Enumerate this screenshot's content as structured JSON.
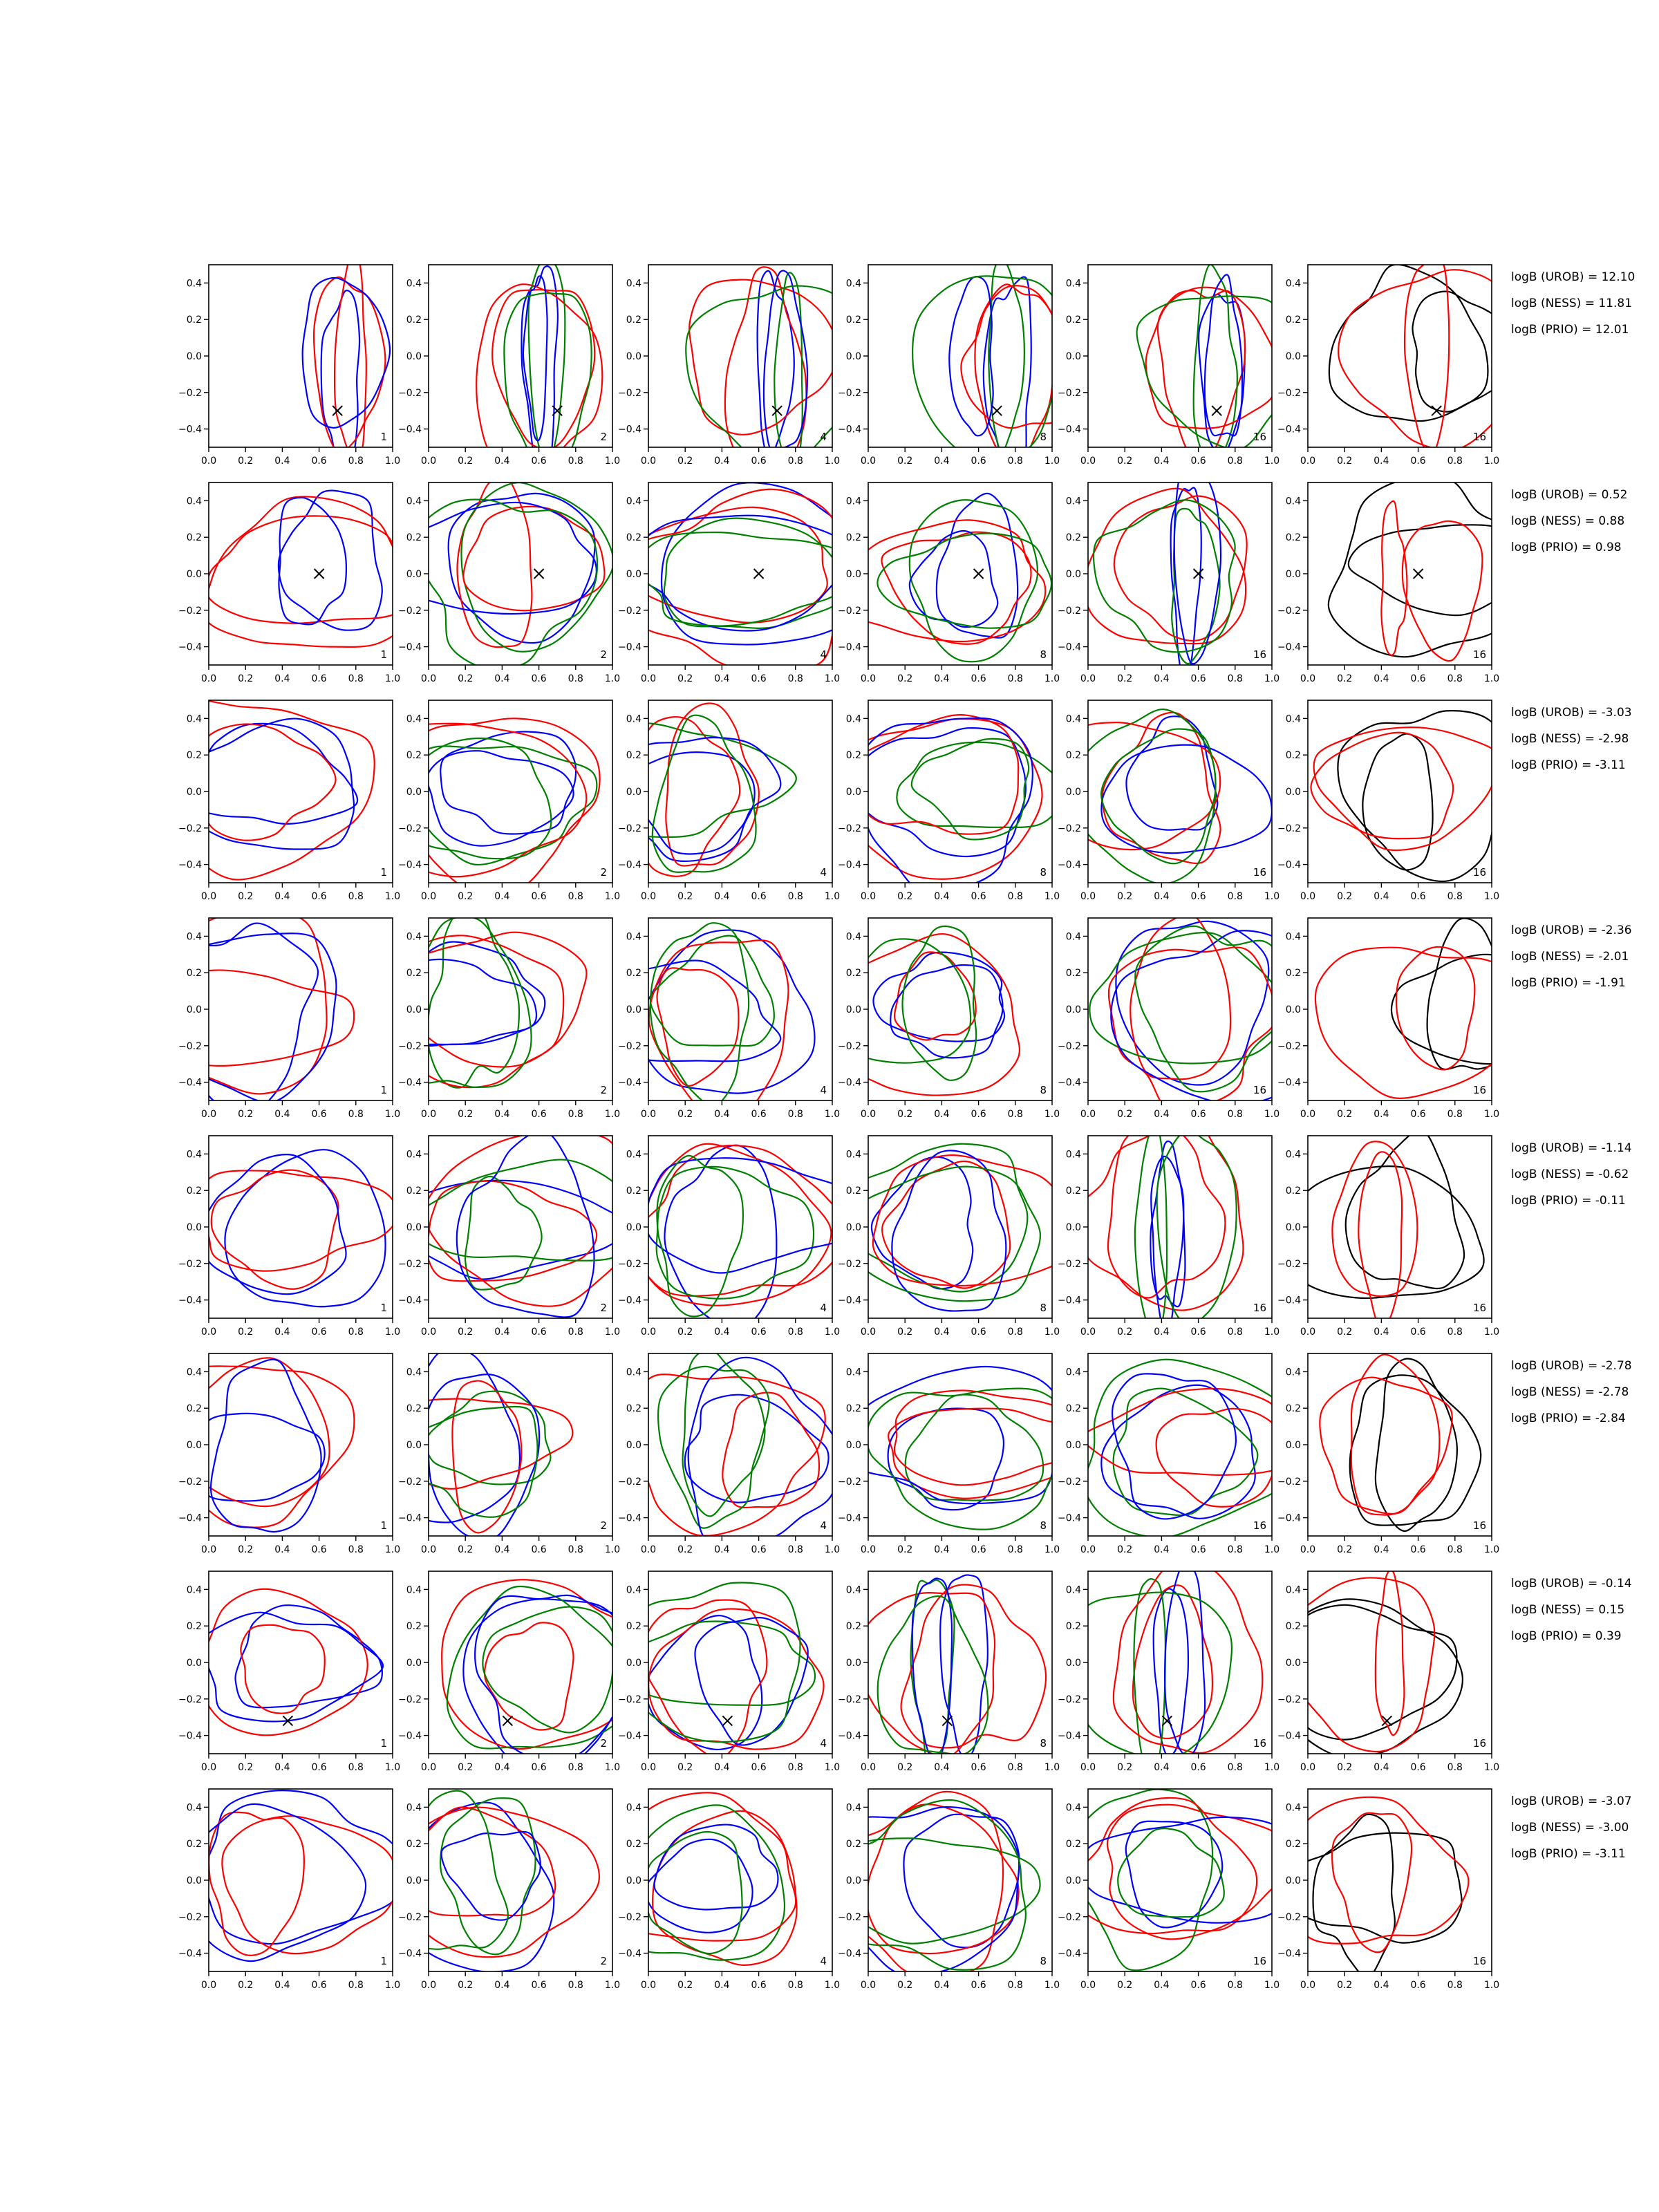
{
  "chart_data": {
    "type": "contour",
    "layout": {
      "rows": 8,
      "columns": 6
    },
    "axes": {
      "xlim": [
        0.0,
        1.0
      ],
      "ylim": [
        -0.5,
        0.5
      ],
      "xticks": [
        0.0,
        0.2,
        0.4,
        0.6,
        0.8,
        1.0
      ],
      "yticks": [
        -0.4,
        -0.2,
        0.0,
        0.2,
        0.4
      ],
      "xtick_labels": [
        "0.0",
        "0.2",
        "0.4",
        "0.6",
        "0.8",
        "1.0"
      ],
      "ytick_labels": [
        "−0.4",
        "−0.2",
        "0.0",
        "0.2",
        "0.4"
      ]
    },
    "series_colors": {
      "blue": "#0000ff",
      "red": "#ff0000",
      "green": "#008000",
      "black": "#000000"
    },
    "panel_labels": [
      "1",
      "2",
      "4",
      "8",
      "16",
      "16"
    ],
    "rows": [
      {
        "marker": [
          0.7,
          -0.3
        ],
        "centers": [
          [
            0.68,
            -0.05
          ],
          [
            0.7,
            -0.05
          ],
          [
            0.7,
            -0.05
          ],
          [
            0.7,
            -0.05
          ],
          [
            0.7,
            -0.05
          ],
          [
            0.7,
            0.0
          ]
        ],
        "logB": [
          "logB (UROB) = 12.10",
          "logB (NESS) = 11.81",
          "logB (PRIO) = 12.01"
        ]
      },
      {
        "marker": [
          0.6,
          0.0
        ],
        "centers": [
          [
            0.55,
            0.0
          ],
          [
            0.5,
            0.0
          ],
          [
            0.5,
            0.0
          ],
          [
            0.55,
            0.0
          ],
          [
            0.55,
            0.0
          ],
          [
            0.6,
            0.0
          ]
        ],
        "logB": [
          "logB (UROB) = 0.52",
          "logB (NESS) = 0.88",
          "logB (PRIO) = 0.98"
        ]
      },
      {
        "marker": null,
        "centers": [
          [
            0.22,
            0.0
          ],
          [
            0.3,
            0.0
          ],
          [
            0.25,
            0.0
          ],
          [
            0.5,
            0.0
          ],
          [
            0.4,
            0.0
          ],
          [
            0.55,
            0.0
          ]
        ],
        "logB": [
          "logB (UROB) = -3.03",
          "logB (NESS) = -2.98",
          "logB (PRIO) = -3.11"
        ]
      },
      {
        "marker": null,
        "centers": [
          [
            0.3,
            0.0
          ],
          [
            0.28,
            0.0
          ],
          [
            0.28,
            0.0
          ],
          [
            0.3,
            0.0
          ],
          [
            0.55,
            0.0
          ],
          [
            0.75,
            0.0
          ]
        ],
        "logB": [
          "logB (UROB) = -2.36",
          "logB (NESS) = -2.01",
          "logB (PRIO) = -1.91"
        ]
      },
      {
        "marker": null,
        "centers": [
          [
            0.4,
            0.0
          ],
          [
            0.45,
            0.0
          ],
          [
            0.4,
            0.0
          ],
          [
            0.45,
            0.0
          ],
          [
            0.5,
            0.0
          ],
          [
            0.48,
            0.0
          ]
        ],
        "logB": [
          "logB (UROB) = -1.14",
          "logB (NESS) = -0.62",
          "logB (PRIO) = -0.11"
        ]
      },
      {
        "marker": null,
        "centers": [
          [
            0.2,
            0.0
          ],
          [
            0.25,
            0.0
          ],
          [
            0.5,
            0.0
          ],
          [
            0.55,
            0.0
          ],
          [
            0.6,
            0.0
          ],
          [
            0.5,
            0.0
          ]
        ],
        "logB": [
          "logB (UROB) = -2.78",
          "logB (NESS) = -2.78",
          "logB (PRIO) = -2.84"
        ]
      },
      {
        "marker": [
          0.43,
          -0.32
        ],
        "centers": [
          [
            0.5,
            -0.05
          ],
          [
            0.55,
            -0.05
          ],
          [
            0.45,
            -0.05
          ],
          [
            0.45,
            -0.05
          ],
          [
            0.45,
            -0.05
          ],
          [
            0.43,
            -0.05
          ]
        ],
        "logB": [
          "logB (UROB) = -0.14",
          "logB (NESS) = 0.15",
          "logB (PRIO) = 0.39"
        ]
      },
      {
        "marker": null,
        "centers": [
          [
            0.4,
            0.0
          ],
          [
            0.25,
            0.0
          ],
          [
            0.4,
            0.0
          ],
          [
            0.45,
            0.0
          ],
          [
            0.45,
            0.0
          ],
          [
            0.4,
            0.0
          ]
        ],
        "logB": [
          "logB (UROB) = -3.07",
          "logB (NESS) = -3.00",
          "logB (PRIO) = -3.11"
        ]
      }
    ]
  }
}
